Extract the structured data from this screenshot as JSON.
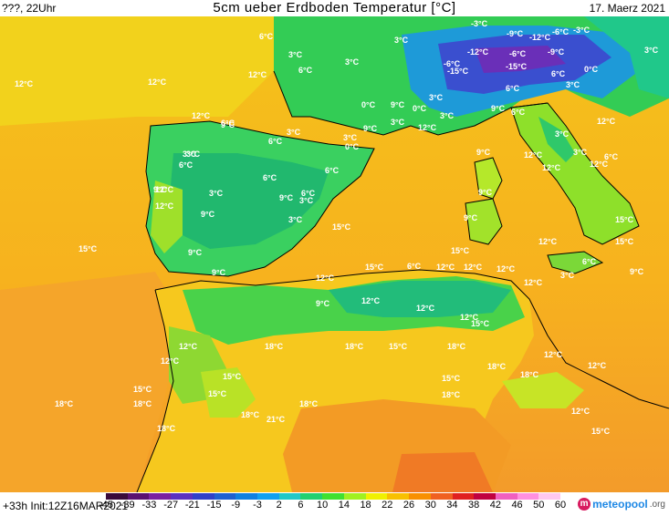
{
  "header": {
    "left": "???, 22Uhr",
    "title": "5cm ueber Erdboden Temperatur [°C]",
    "date": "17. Maerz 2021"
  },
  "footer": {
    "run": "+33h Init:12Z16MAR2021",
    "brand_name": "meteopool",
    "brand_tld": ".org"
  },
  "legend": {
    "ticks": [
      "-45",
      "-39",
      "-33",
      "-27",
      "-21",
      "-15",
      "-9",
      "-3",
      "2",
      "6",
      "10",
      "14",
      "18",
      "22",
      "26",
      "30",
      "34",
      "38",
      "42",
      "46",
      "50",
      "60"
    ],
    "colors": [
      "#3a0a3a",
      "#5a1070",
      "#7a20a0",
      "#5a30c0",
      "#3040c8",
      "#2060d0",
      "#1080e0",
      "#10a0f0",
      "#20c8c8",
      "#20d070",
      "#40e030",
      "#a0f020",
      "#f0f000",
      "#f8c000",
      "#f89000",
      "#f06020",
      "#e02020",
      "#c00040",
      "#f060c0",
      "#ff90e0",
      "#ffc8f0"
    ],
    "icon": "meteopool-logo-icon"
  },
  "map": {
    "labels": [
      {
        "t": "6°C"
      },
      {
        "t": "3°C"
      },
      {
        "t": "12°C"
      },
      {
        "t": "12°C"
      },
      {
        "t": "12°C"
      },
      {
        "t": "3°C"
      },
      {
        "t": "6°C"
      },
      {
        "t": "3°C"
      },
      {
        "t": "3°C"
      },
      {
        "t": "-3°C"
      },
      {
        "t": "-9°C"
      },
      {
        "t": "-6°C"
      },
      {
        "t": "-12°C"
      },
      {
        "t": "-3°C"
      },
      {
        "t": "-12°C"
      },
      {
        "t": "-6°C"
      },
      {
        "t": "-9°C"
      },
      {
        "t": "-15°C"
      },
      {
        "t": "-6°C"
      },
      {
        "t": "-15°C"
      },
      {
        "t": "3°C"
      },
      {
        "t": "0°C"
      },
      {
        "t": "3°C"
      },
      {
        "t": "6°C"
      },
      {
        "t": "0°C"
      },
      {
        "t": "6°C"
      },
      {
        "t": "12°C"
      },
      {
        "t": "9°C"
      },
      {
        "t": "6°C"
      },
      {
        "t": "3°C"
      },
      {
        "t": "3°C"
      },
      {
        "t": "0°C"
      },
      {
        "t": "9°C"
      },
      {
        "t": "3°C"
      },
      {
        "t": "12°C"
      },
      {
        "t": "9°C"
      },
      {
        "t": "12°C"
      },
      {
        "t": "3°C"
      },
      {
        "t": "6°C"
      },
      {
        "t": "6°C"
      },
      {
        "t": "3°C"
      },
      {
        "t": "3°C"
      },
      {
        "t": "0°C"
      },
      {
        "t": "6°C"
      },
      {
        "t": "9°C"
      },
      {
        "t": "12°C"
      },
      {
        "t": "3°C"
      },
      {
        "t": "6°C"
      },
      {
        "t": "9°C"
      },
      {
        "t": "12°C"
      },
      {
        "t": "3°C"
      },
      {
        "t": "3°C"
      },
      {
        "t": "6°C"
      },
      {
        "t": "9°C"
      },
      {
        "t": "6°C"
      },
      {
        "t": "9°C"
      },
      {
        "t": "12°C"
      },
      {
        "t": "6°C"
      },
      {
        "t": "9°C"
      },
      {
        "t": "15°C"
      },
      {
        "t": "3°C"
      },
      {
        "t": "12°C"
      },
      {
        "t": "12°C"
      },
      {
        "t": "15°C"
      },
      {
        "t": "15°C"
      },
      {
        "t": "9°C"
      },
      {
        "t": "3°C"
      },
      {
        "t": "6°C"
      },
      {
        "t": "12°C"
      },
      {
        "t": "9°C"
      },
      {
        "t": "3°C"
      },
      {
        "t": "15°C"
      },
      {
        "t": "9°C"
      },
      {
        "t": "9°C"
      },
      {
        "t": "9°C"
      },
      {
        "t": "6°C"
      },
      {
        "t": "15°C"
      },
      {
        "t": "12°C"
      },
      {
        "t": "12°C"
      },
      {
        "t": "12°C"
      },
      {
        "t": "12°C"
      },
      {
        "t": "12°C"
      },
      {
        "t": "12°C"
      },
      {
        "t": "9°C"
      },
      {
        "t": "15°C"
      },
      {
        "t": "12°C"
      },
      {
        "t": "12°C"
      },
      {
        "t": "15°C"
      },
      {
        "t": "18°C"
      },
      {
        "t": "18°C"
      },
      {
        "t": "15°C"
      },
      {
        "t": "15°C"
      },
      {
        "t": "12°C"
      },
      {
        "t": "15°C"
      },
      {
        "t": "12°C"
      },
      {
        "t": "18°C"
      },
      {
        "t": "18°C"
      },
      {
        "t": "15°C"
      },
      {
        "t": "18°C"
      },
      {
        "t": "18°C"
      },
      {
        "t": "15°C"
      },
      {
        "t": "12°C"
      },
      {
        "t": "12°C"
      },
      {
        "t": "18°C"
      },
      {
        "t": "18°C"
      },
      {
        "t": "18°C"
      },
      {
        "t": "21°C"
      },
      {
        "t": "18°C"
      },
      {
        "t": "12°C"
      },
      {
        "t": "15°C"
      },
      {
        "t": "18°C"
      }
    ]
  }
}
